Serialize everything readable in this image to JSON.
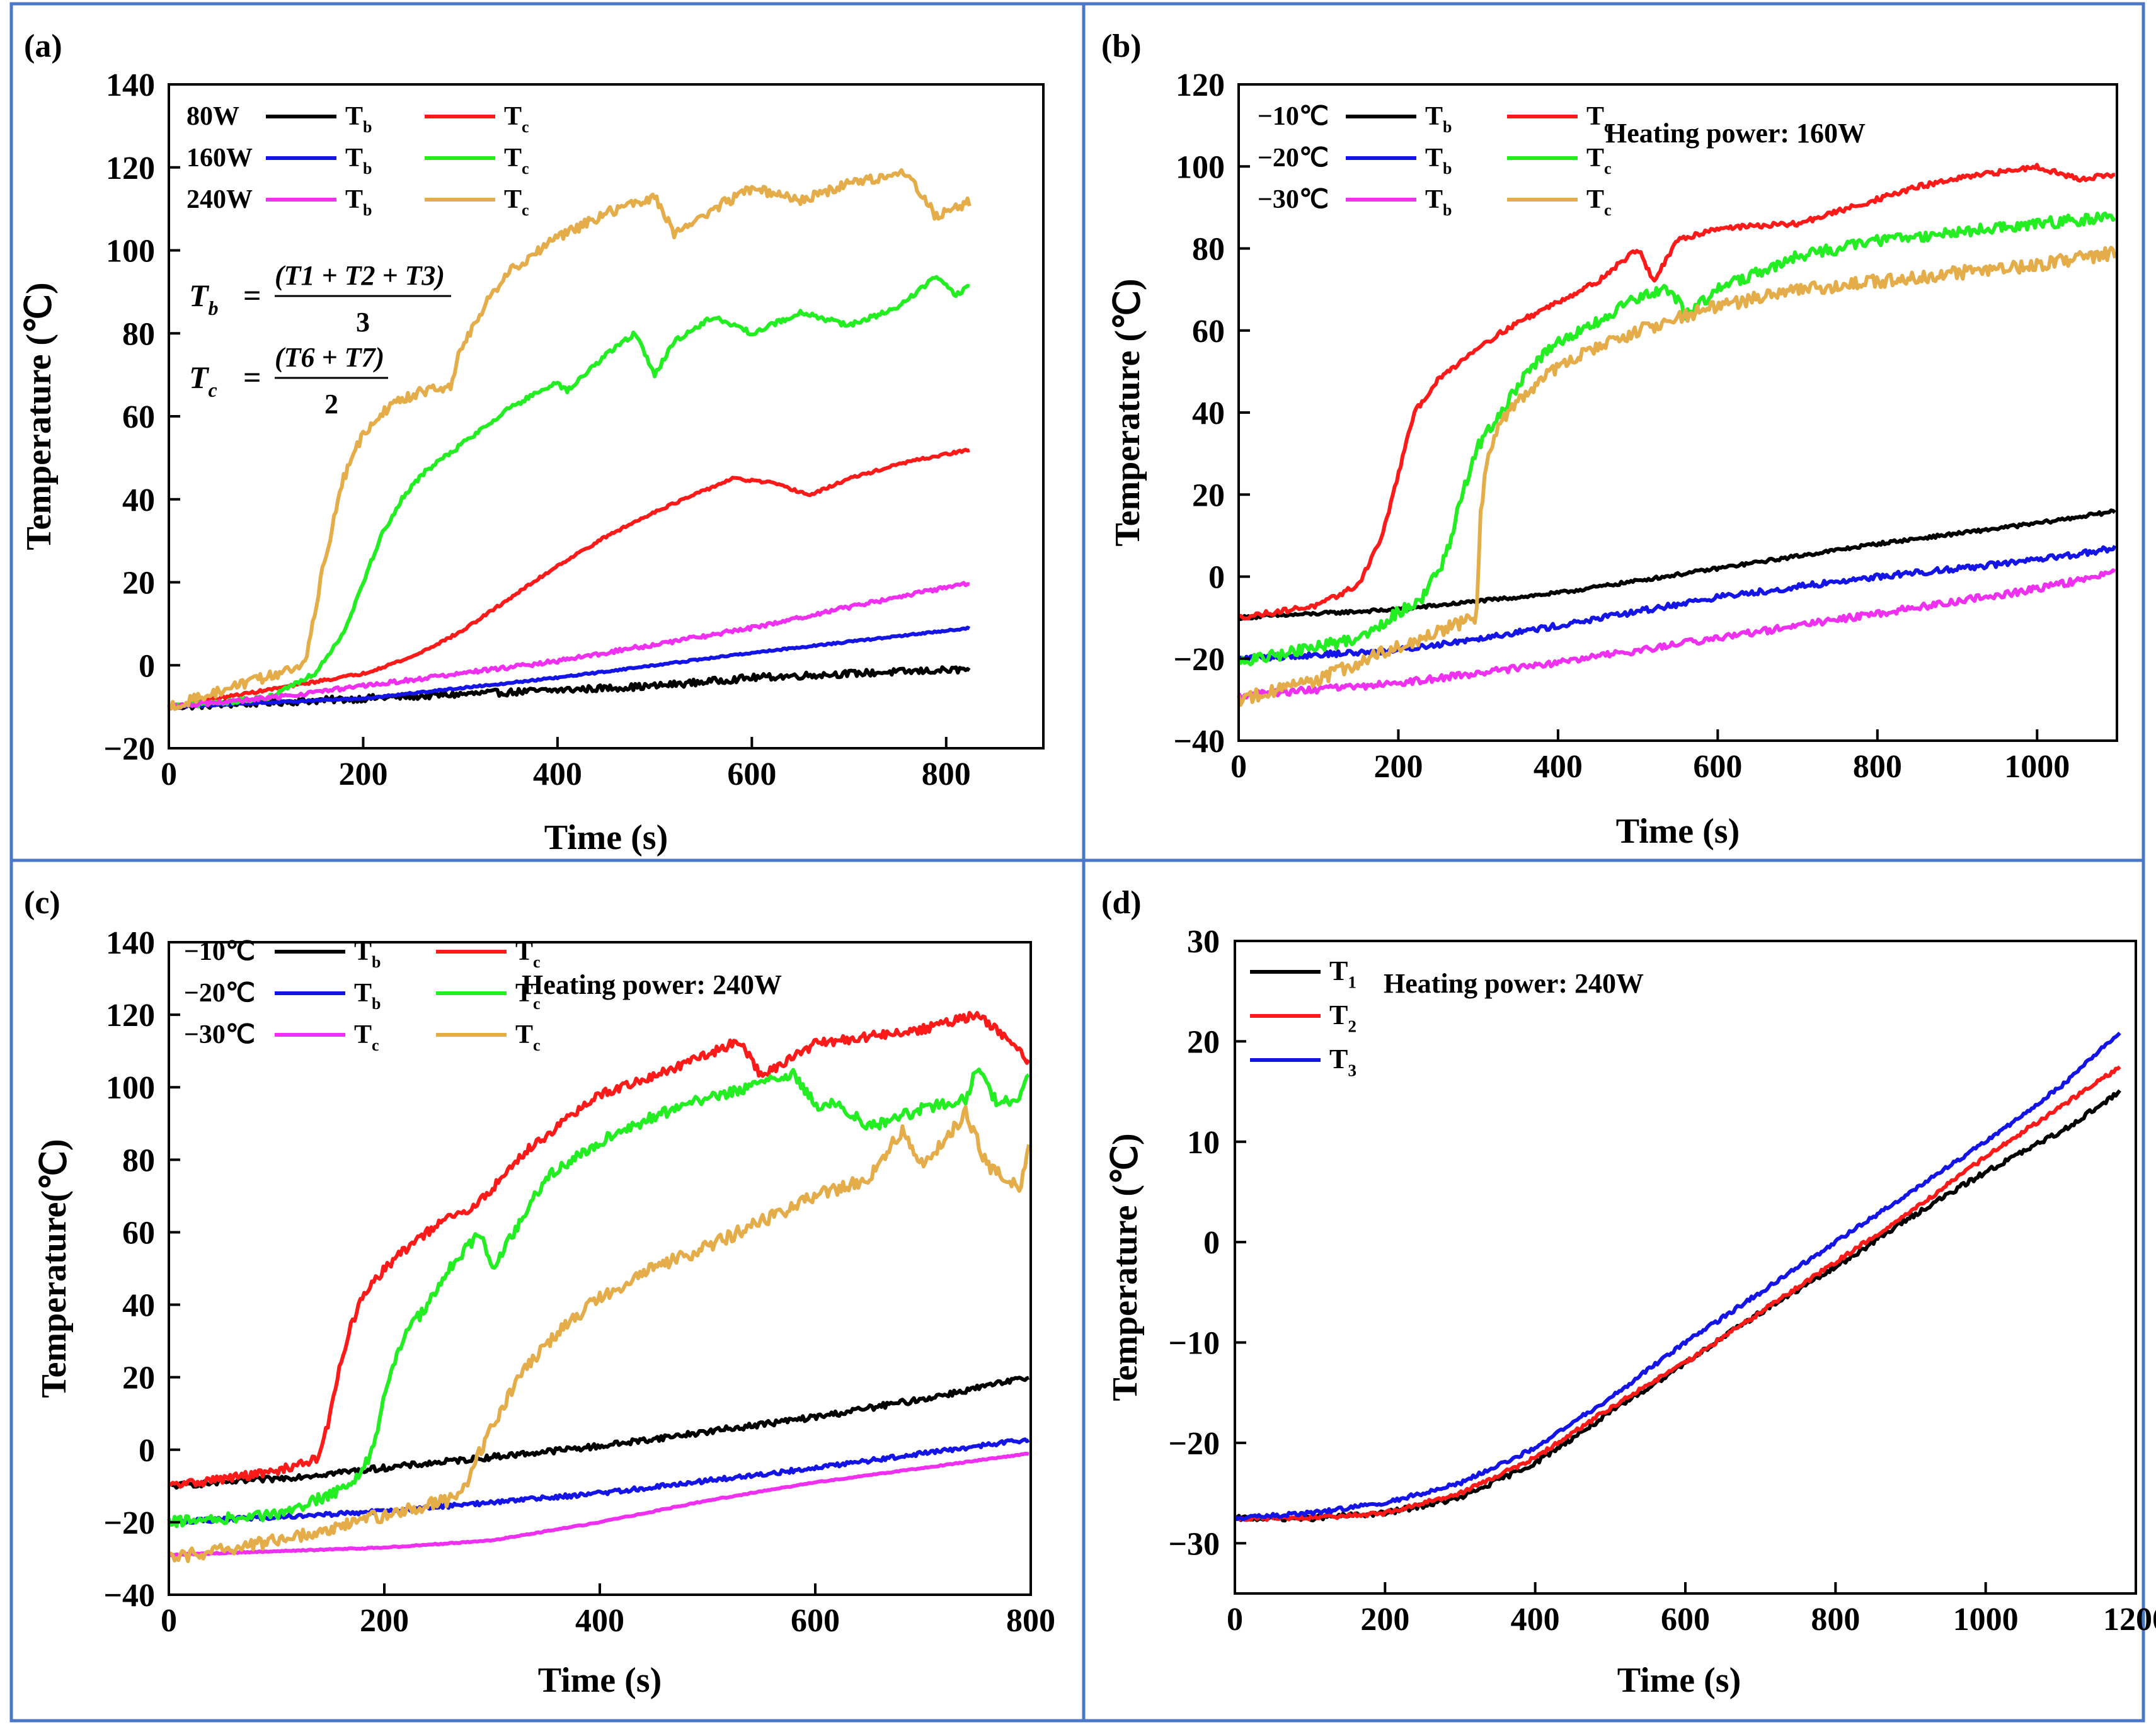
{
  "colors": {
    "black": "#000000",
    "red": "#ff1a1a",
    "blue": "#1414e6",
    "green": "#22ee22",
    "magenta": "#f030f0",
    "gold": "#e4ad4a",
    "frame": "#4a77c8"
  },
  "chart_data": [
    {
      "type": "line",
      "panel_label": "(a)",
      "xlabel": "Time (s)",
      "ylabel": "Temperature (℃)",
      "xlim": [
        0,
        900
      ],
      "ylim": [
        -20,
        140
      ],
      "xticks": [
        "0",
        "200",
        "400",
        "600",
        "800"
      ],
      "yticks": [
        "−20",
        "0",
        "20",
        "40",
        "60",
        "80",
        "100",
        "120",
        "140"
      ],
      "legend": [
        {
          "group": "80W",
          "entries": [
            {
              "label": "Tb",
              "color": "black"
            },
            {
              "label": "Tc",
              "color": "red"
            }
          ]
        },
        {
          "group": "160W",
          "entries": [
            {
              "label": "Tb",
              "color": "blue"
            },
            {
              "label": "Tc",
              "color": "green"
            }
          ]
        },
        {
          "group": "240W",
          "entries": [
            {
              "label": "Tb",
              "color": "magenta"
            },
            {
              "label": "Tc",
              "color": "gold"
            }
          ]
        }
      ],
      "equations": {
        "tb": {
          "lhs": "Tb",
          "num": "(T1 + T2 + T3)",
          "den": "3"
        },
        "tc": {
          "lhs": "Tc",
          "num": "(T6 + T7)",
          "den": "2"
        }
      },
      "series": [
        {
          "name": "80W Tb",
          "color": "black",
          "noise": 0.8,
          "x": [
            0,
            100,
            200,
            300,
            400,
            500,
            600,
            700,
            825
          ],
          "y": [
            -10,
            -9,
            -8,
            -7,
            -6,
            -5,
            -3,
            -2,
            -1
          ]
        },
        {
          "name": "80W Tc",
          "color": "red",
          "noise": 0.3,
          "x": [
            0,
            100,
            200,
            250,
            300,
            350,
            400,
            450,
            500,
            550,
            580,
            620,
            660,
            700,
            760,
            825
          ],
          "y": [
            -10,
            -6,
            -2,
            2,
            8,
            16,
            24,
            31,
            37,
            42,
            45,
            44,
            41,
            45,
            49,
            52
          ]
        },
        {
          "name": "160W Tb",
          "color": "blue",
          "noise": 0.2,
          "x": [
            0,
            200,
            400,
            600,
            825
          ],
          "y": [
            -10,
            -8,
            -3,
            3,
            9
          ]
        },
        {
          "name": "160W Tc",
          "color": "green",
          "noise": 0.6,
          "x": [
            0,
            100,
            150,
            180,
            200,
            220,
            240,
            260,
            300,
            350,
            400,
            410,
            450,
            480,
            500,
            520,
            560,
            600,
            650,
            700,
            750,
            790,
            810,
            825
          ],
          "y": [
            -10,
            -8,
            -2,
            8,
            20,
            32,
            40,
            46,
            53,
            62,
            68,
            66,
            75,
            80,
            70,
            78,
            84,
            80,
            85,
            82,
            86,
            94,
            89,
            92
          ]
        },
        {
          "name": "240W Tb",
          "color": "magenta",
          "noise": 0.5,
          "x": [
            0,
            100,
            200,
            300,
            400,
            500,
            600,
            700,
            825
          ],
          "y": [
            -10,
            -8,
            -5,
            -2,
            1,
            5,
            9,
            14,
            20
          ]
        },
        {
          "name": "240W Tc",
          "color": "gold",
          "noise": 1.2,
          "x": [
            0,
            140,
            160,
            180,
            200,
            230,
            260,
            290,
            300,
            320,
            350,
            400,
            450,
            500,
            520,
            540,
            560,
            600,
            650,
            700,
            760,
            790,
            825
          ],
          "y": [
            -10,
            0,
            25,
            45,
            56,
            63,
            66,
            67,
            76,
            85,
            95,
            103,
            109,
            113,
            104,
            107,
            110,
            115,
            112,
            116,
            119,
            108,
            112
          ]
        }
      ]
    },
    {
      "type": "line",
      "panel_label": "(b)",
      "xlabel": "Time (s)",
      "ylabel": "Temperature (℃)",
      "xlim": [
        0,
        1100
      ],
      "ylim": [
        -40,
        120
      ],
      "xticks": [
        "0",
        "200",
        "400",
        "600",
        "800",
        "1000"
      ],
      "yticks": [
        "−40",
        "−20",
        "0",
        "20",
        "40",
        "60",
        "80",
        "100",
        "120"
      ],
      "legend": [
        {
          "group": "−10℃",
          "entries": [
            {
              "label": "Tb",
              "color": "black"
            },
            {
              "label": "Tc",
              "color": "red"
            }
          ]
        },
        {
          "group": "−20℃",
          "entries": [
            {
              "label": "Tb",
              "color": "blue"
            },
            {
              "label": "Tc",
              "color": "green"
            }
          ]
        },
        {
          "group": "−30℃",
          "entries": [
            {
              "label": "Tb",
              "color": "magenta"
            },
            {
              "label": "Tc",
              "color": "gold"
            }
          ]
        }
      ],
      "annotation": "Heating power: 160W",
      "series": [
        {
          "name": "−10℃ Tb",
          "color": "black",
          "noise": 0.4,
          "x": [
            0,
            200,
            400,
            600,
            800,
            1000,
            1100
          ],
          "y": [
            -10,
            -8,
            -4,
            2,
            8,
            13,
            16
          ]
        },
        {
          "name": "−10℃ Tc",
          "color": "red",
          "noise": 0.6,
          "x": [
            0,
            100,
            150,
            180,
            200,
            220,
            250,
            300,
            350,
            400,
            450,
            500,
            520,
            550,
            600,
            700,
            800,
            850,
            900,
            1000,
            1050,
            1100
          ],
          "y": [
            -10,
            -7,
            -2,
            10,
            25,
            40,
            48,
            56,
            62,
            67,
            72,
            80,
            72,
            82,
            85,
            86,
            92,
            95,
            97,
            100,
            97,
            98
          ]
        },
        {
          "name": "−20℃ Tb",
          "color": "blue",
          "noise": 0.7,
          "x": [
            0,
            200,
            400,
            600,
            800,
            1000,
            1100
          ],
          "y": [
            -20,
            -18,
            -12,
            -5,
            0,
            4,
            7
          ]
        },
        {
          "name": "−20℃ Tc",
          "color": "green",
          "noise": 1.4,
          "x": [
            0,
            150,
            230,
            260,
            280,
            300,
            330,
            360,
            400,
            450,
            500,
            540,
            560,
            600,
            700,
            800,
            900,
            1000,
            1100
          ],
          "y": [
            -21,
            -15,
            -5,
            5,
            20,
            32,
            40,
            50,
            57,
            62,
            68,
            70,
            64,
            70,
            78,
            82,
            84,
            86,
            88
          ]
        },
        {
          "name": "−30℃ Tb",
          "color": "magenta",
          "noise": 0.8,
          "x": [
            0,
            200,
            400,
            600,
            800,
            1000,
            1100
          ],
          "y": [
            -29,
            -26,
            -21,
            -15,
            -9,
            -3,
            1
          ]
        },
        {
          "name": "−30℃ Tc",
          "color": "gold",
          "noise": 1.6,
          "x": [
            0,
            100,
            200,
            298,
            303,
            310,
            330,
            360,
            400,
            450,
            500,
            550,
            600,
            700,
            800,
            900,
            1000,
            1100
          ],
          "y": [
            -30,
            -25,
            -17,
            -10,
            15,
            28,
            38,
            45,
            51,
            56,
            60,
            63,
            66,
            70,
            72,
            74,
            76,
            79
          ]
        }
      ]
    },
    {
      "type": "line",
      "panel_label": "(c)",
      "xlabel": "Time (s)",
      "ylabel": "Temperature(℃)",
      "xlim": [
        0,
        800
      ],
      "ylim": [
        -40,
        140
      ],
      "xticks": [
        "0",
        "200",
        "400",
        "600",
        "800"
      ],
      "yticks": [
        "−40",
        "−20",
        "0",
        "20",
        "40",
        "60",
        "80",
        "100",
        "120",
        "140"
      ],
      "legend": [
        {
          "group": "−10℃",
          "entries": [
            {
              "label": "Tb",
              "color": "black"
            },
            {
              "label": "Tc",
              "color": "red"
            }
          ]
        },
        {
          "group": "−20℃",
          "entries": [
            {
              "label": "Tb",
              "color": "blue"
            },
            {
              "label": "Tc",
              "color": "green"
            }
          ]
        },
        {
          "group": "−30℃",
          "entries": [
            {
              "label": "Tc",
              "color": "magenta"
            },
            {
              "label": "Tc",
              "color": "gold"
            }
          ]
        }
      ],
      "annotation": "Heating power: 240W",
      "series": [
        {
          "name": "−10℃ Tb",
          "color": "black",
          "noise": 0.8,
          "x": [
            0,
            100,
            200,
            300,
            400,
            500,
            600,
            700,
            800
          ],
          "y": [
            -10,
            -8,
            -5,
            -2,
            1,
            5,
            9,
            14,
            20
          ]
        },
        {
          "name": "−10℃ Tc",
          "color": "red",
          "noise": 1.2,
          "x": [
            0,
            100,
            140,
            150,
            160,
            170,
            180,
            200,
            230,
            260,
            280,
            300,
            330,
            360,
            400,
            450,
            500,
            530,
            550,
            600,
            650,
            700,
            750,
            780,
            800
          ],
          "y": [
            -10,
            -6,
            -2,
            10,
            25,
            35,
            42,
            50,
            58,
            64,
            66,
            72,
            82,
            89,
            98,
            103,
            109,
            113,
            103,
            112,
            114,
            116,
            120,
            113,
            106
          ]
        },
        {
          "name": "−20℃ Tb",
          "color": "blue",
          "noise": 0.6,
          "x": [
            0,
            200,
            400,
            600,
            800
          ],
          "y": [
            -20,
            -17,
            -12,
            -5,
            3
          ]
        },
        {
          "name": "−20℃ Tc",
          "color": "green",
          "noise": 1.5,
          "x": [
            0,
            100,
            170,
            190,
            200,
            210,
            220,
            240,
            260,
            280,
            290,
            300,
            320,
            350,
            400,
            450,
            500,
            550,
            580,
            600,
            620,
            650,
            700,
            740,
            750,
            770,
            790,
            800
          ],
          "y": [
            -20,
            -18,
            -10,
            0,
            15,
            25,
            32,
            40,
            50,
            57,
            60,
            50,
            60,
            75,
            85,
            92,
            97,
            101,
            104,
            95,
            96,
            89,
            94,
            97,
            105,
            95,
            98,
            104
          ]
        },
        {
          "name": "−30℃ Tc (magenta)",
          "color": "magenta",
          "noise": 0.15,
          "x": [
            0,
            200,
            300,
            400,
            500,
            600,
            700,
            800
          ],
          "y": [
            -29,
            -27,
            -25,
            -20,
            -14,
            -9,
            -5,
            -1
          ]
        },
        {
          "name": "−30℃ Tc (gold)",
          "color": "gold",
          "noise": 1.8,
          "x": [
            0,
            100,
            200,
            270,
            290,
            310,
            330,
            360,
            400,
            450,
            500,
            550,
            600,
            650,
            680,
            700,
            740,
            760,
            790,
            800
          ],
          "y": [
            -30,
            -25,
            -18,
            -13,
            0,
            12,
            22,
            32,
            42,
            50,
            56,
            63,
            70,
            75,
            88,
            78,
            93,
            78,
            72,
            87
          ]
        }
      ]
    },
    {
      "type": "line",
      "panel_label": "(d)",
      "xlabel": "Time (s)",
      "ylabel": "Temperature (℃)",
      "xlim": [
        0,
        1200
      ],
      "ylim": [
        -35,
        30
      ],
      "xticks": [
        "0",
        "200",
        "400",
        "600",
        "800",
        "1000",
        "1200"
      ],
      "yticks": [
        "−30",
        "−20",
        "−10",
        "0",
        "10",
        "20",
        "30"
      ],
      "legend": [
        {
          "group": "",
          "entries": [
            {
              "label": "T1",
              "color": "black"
            }
          ]
        },
        {
          "group": "",
          "entries": [
            {
              "label": "T2",
              "color": "red"
            }
          ]
        },
        {
          "group": "",
          "entries": [
            {
              "label": "T3",
              "color": "blue"
            }
          ]
        }
      ],
      "annotation": "Heating power: 240W",
      "series": [
        {
          "name": "T1",
          "color": "black",
          "noise": 0.25,
          "x": [
            0,
            100,
            200,
            300,
            400,
            500,
            600,
            700,
            800,
            900,
            1000,
            1100,
            1180
          ],
          "y": [
            -27.5,
            -27.5,
            -27,
            -25.5,
            -22,
            -17,
            -12,
            -7,
            -2.5,
            2.5,
            7,
            11,
            15
          ]
        },
        {
          "name": "T2",
          "color": "red",
          "noise": 0.2,
          "x": [
            0,
            100,
            200,
            300,
            400,
            500,
            600,
            700,
            800,
            900,
            1000,
            1100,
            1180
          ],
          "y": [
            -27.5,
            -27.5,
            -27,
            -25,
            -21.5,
            -16.5,
            -12,
            -7,
            -2,
            3,
            8.5,
            13.5,
            17.5
          ]
        },
        {
          "name": "T3",
          "color": "blue",
          "noise": 0.2,
          "x": [
            0,
            100,
            200,
            300,
            400,
            500,
            600,
            700,
            800,
            900,
            1000,
            1100,
            1180
          ],
          "y": [
            -27.5,
            -27,
            -26,
            -24,
            -20.5,
            -15.5,
            -10,
            -5,
            0,
            5,
            10,
            15.5,
            21
          ]
        }
      ]
    }
  ]
}
